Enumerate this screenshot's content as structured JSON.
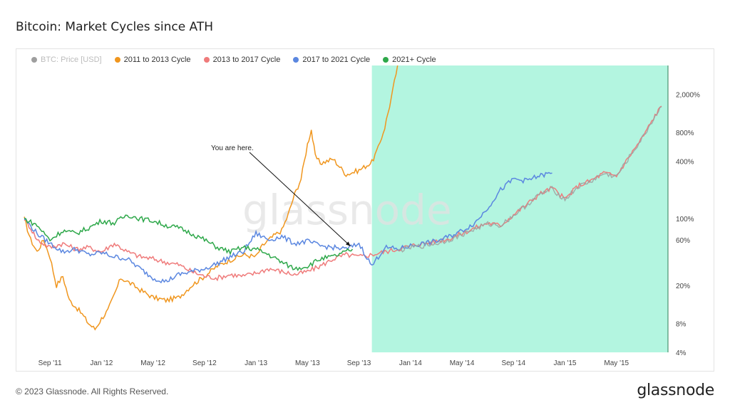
{
  "header": {
    "title": "Bitcoin: Market Cycles since ATH"
  },
  "footer": {
    "copyright": "© 2023 Glassnode. All Rights Reserved.",
    "logo_text": "glassnode"
  },
  "watermark": "glassnode",
  "colors": {
    "highlight": "#b3f5e0",
    "highlight_edge": "#2f7d55",
    "btc_price": "#9e9e9e",
    "cycle_2011": "#f0961e",
    "cycle_2013": "#ef7b7b",
    "cycle_2017": "#5b87e0",
    "cycle_2021": "#2ea84a"
  },
  "chart_data": {
    "type": "line",
    "title": "Bitcoin: Market Cycles since ATH",
    "y_scale": "log",
    "y_unit": "percent of ATH",
    "ylim": [
      4,
      4000
    ],
    "y_ticks": [
      {
        "value": 2000,
        "label": "2,000%"
      },
      {
        "value": 800,
        "label": "800%"
      },
      {
        "value": 400,
        "label": "400%"
      },
      {
        "value": 100,
        "label": "100%"
      },
      {
        "value": 60,
        "label": "60%"
      },
      {
        "value": 20,
        "label": "20%"
      },
      {
        "value": 8,
        "label": "8%"
      },
      {
        "value": 4,
        "label": "4%"
      }
    ],
    "x_ticks": [
      "Sep '11",
      "Jan '12",
      "May '12",
      "Sep '12",
      "Jan '13",
      "May '13",
      "Sep '13",
      "Jan '14",
      "May '14",
      "Sep '14",
      "Jan '15",
      "May '15"
    ],
    "x_range_months": [
      0,
      50
    ],
    "highlight_region": {
      "from_month": 27,
      "to_month": 50
    },
    "grid": false,
    "legend_position": "top-left",
    "legend": [
      {
        "name": "BTC: Price [USD]",
        "color": "#9e9e9e",
        "muted": true
      },
      {
        "name": "2011 to 2013 Cycle",
        "color": "#f0961e"
      },
      {
        "name": "2013 to 2017 Cycle",
        "color": "#ef7b7b"
      },
      {
        "name": "2017 to 2021 Cycle",
        "color": "#5b87e0"
      },
      {
        "name": "2021+ Cycle",
        "color": "#2ea84a"
      }
    ],
    "annotation": {
      "text": "You are here.",
      "target_month": 25.5,
      "target_value": 45
    },
    "series": [
      {
        "name": "2011 to 2013 Cycle",
        "color": "#f0961e",
        "points": [
          [
            0,
            100
          ],
          [
            0.5,
            60
          ],
          [
            1,
            45
          ],
          [
            1.5,
            60
          ],
          [
            2,
            40
          ],
          [
            2.5,
            20
          ],
          [
            3,
            25
          ],
          [
            3.5,
            14
          ],
          [
            4,
            12
          ],
          [
            4.5,
            10
          ],
          [
            5,
            8
          ],
          [
            5.5,
            7
          ],
          [
            6,
            9
          ],
          [
            6.5,
            11
          ],
          [
            7,
            16
          ],
          [
            7.5,
            24
          ],
          [
            8,
            22
          ],
          [
            8.5,
            20
          ],
          [
            9,
            18
          ],
          [
            10,
            15
          ],
          [
            11,
            14
          ],
          [
            12,
            15
          ],
          [
            13,
            20
          ],
          [
            14,
            25
          ],
          [
            15,
            32
          ],
          [
            16,
            37
          ],
          [
            17,
            42
          ],
          [
            18,
            40
          ],
          [
            18.5,
            52
          ],
          [
            19,
            60
          ],
          [
            19.5,
            68
          ],
          [
            20,
            75
          ],
          [
            20.5,
            110
          ],
          [
            21,
            180
          ],
          [
            21.5,
            260
          ],
          [
            22,
            600
          ],
          [
            22.3,
            850
          ],
          [
            22.6,
            450
          ],
          [
            23,
            380
          ],
          [
            24,
            420
          ],
          [
            25,
            290
          ],
          [
            26,
            320
          ],
          [
            27,
            390
          ],
          [
            27.5,
            550
          ],
          [
            28,
            900
          ],
          [
            28.5,
            1800
          ],
          [
            29,
            4000
          ]
        ]
      },
      {
        "name": "2013 to 2017 Cycle",
        "color": "#ef7b7b",
        "points": [
          [
            0,
            100
          ],
          [
            0.5,
            80
          ],
          [
            1,
            60
          ],
          [
            2,
            50
          ],
          [
            3,
            55
          ],
          [
            4,
            48
          ],
          [
            5,
            50
          ],
          [
            6,
            45
          ],
          [
            7,
            55
          ],
          [
            8,
            45
          ],
          [
            9,
            40
          ],
          [
            10,
            38
          ],
          [
            11,
            35
          ],
          [
            12,
            33
          ],
          [
            13,
            28
          ],
          [
            14,
            25
          ],
          [
            15,
            24
          ],
          [
            16,
            26
          ],
          [
            17,
            25
          ],
          [
            18,
            27
          ],
          [
            19,
            30
          ],
          [
            20,
            28
          ],
          [
            21,
            26
          ],
          [
            22,
            28
          ],
          [
            23,
            32
          ],
          [
            24,
            38
          ],
          [
            25,
            42
          ],
          [
            26,
            40
          ],
          [
            27,
            42
          ],
          [
            28,
            45
          ],
          [
            29,
            48
          ],
          [
            30,
            52
          ],
          [
            31,
            55
          ],
          [
            32,
            58
          ],
          [
            33,
            62
          ],
          [
            34,
            70
          ],
          [
            35,
            80
          ],
          [
            36,
            90
          ],
          [
            37,
            85
          ],
          [
            38,
            110
          ],
          [
            39,
            140
          ],
          [
            40,
            180
          ],
          [
            41,
            210
          ],
          [
            42,
            160
          ],
          [
            43,
            220
          ],
          [
            44,
            250
          ],
          [
            45,
            300
          ],
          [
            46,
            280
          ],
          [
            47,
            450
          ],
          [
            48,
            700
          ],
          [
            49,
            1200
          ],
          [
            49.5,
            1500
          ]
        ]
      },
      {
        "name": "2017 to 2021 Cycle",
        "color": "#5b87e0",
        "points": [
          [
            0,
            100
          ],
          [
            1,
            70
          ],
          [
            2,
            55
          ],
          [
            3,
            45
          ],
          [
            4,
            48
          ],
          [
            5,
            42
          ],
          [
            6,
            44
          ],
          [
            7,
            40
          ],
          [
            8,
            38
          ],
          [
            9,
            30
          ],
          [
            10,
            24
          ],
          [
            11,
            22
          ],
          [
            12,
            26
          ],
          [
            13,
            28
          ],
          [
            14,
            30
          ],
          [
            15,
            34
          ],
          [
            16,
            40
          ],
          [
            17,
            45
          ],
          [
            18,
            70
          ],
          [
            19,
            60
          ],
          [
            20,
            65
          ],
          [
            21,
            55
          ],
          [
            22,
            58
          ],
          [
            23,
            52
          ],
          [
            24,
            50
          ],
          [
            25,
            48
          ],
          [
            26,
            55
          ],
          [
            27,
            32
          ],
          [
            27.5,
            40
          ],
          [
            28,
            50
          ],
          [
            29,
            48
          ],
          [
            30,
            52
          ],
          [
            31,
            55
          ],
          [
            32,
            58
          ],
          [
            33,
            65
          ],
          [
            34,
            75
          ],
          [
            35,
            90
          ],
          [
            36,
            130
          ],
          [
            37,
            200
          ],
          [
            38,
            260
          ],
          [
            39,
            250
          ],
          [
            40,
            280
          ],
          [
            41,
            300
          ]
        ]
      },
      {
        "name": "2021+ Cycle",
        "color": "#2ea84a",
        "points": [
          [
            0,
            100
          ],
          [
            1,
            85
          ],
          [
            2,
            60
          ],
          [
            3,
            75
          ],
          [
            4,
            70
          ],
          [
            5,
            80
          ],
          [
            6,
            95
          ],
          [
            7,
            90
          ],
          [
            8,
            110
          ],
          [
            9,
            100
          ],
          [
            10,
            95
          ],
          [
            11,
            85
          ],
          [
            12,
            80
          ],
          [
            13,
            70
          ],
          [
            14,
            60
          ],
          [
            15,
            50
          ],
          [
            16,
            45
          ],
          [
            17,
            50
          ],
          [
            18,
            48
          ],
          [
            19,
            42
          ],
          [
            20,
            35
          ],
          [
            21,
            30
          ],
          [
            22,
            32
          ],
          [
            23,
            38
          ],
          [
            24,
            40
          ],
          [
            25,
            45
          ],
          [
            25.5,
            48
          ]
        ]
      },
      {
        "name": "BTC: Price [USD]",
        "color": "#9e9e9e",
        "muted": true,
        "points": [
          [
            29,
            46
          ],
          [
            30,
            50
          ],
          [
            31,
            52
          ],
          [
            32,
            55
          ],
          [
            33,
            60
          ],
          [
            34,
            68
          ],
          [
            35,
            78
          ],
          [
            36,
            88
          ],
          [
            37,
            85
          ],
          [
            38,
            108
          ],
          [
            39,
            138
          ],
          [
            40,
            178
          ],
          [
            41,
            205
          ],
          [
            42,
            158
          ],
          [
            43,
            215
          ],
          [
            44,
            245
          ],
          [
            45,
            295
          ],
          [
            46,
            275
          ],
          [
            47,
            440
          ],
          [
            48,
            690
          ],
          [
            49,
            1180
          ],
          [
            49.5,
            1480
          ]
        ]
      }
    ]
  }
}
